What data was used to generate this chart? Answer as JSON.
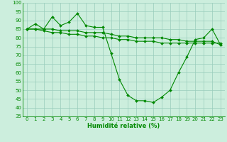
{
  "xlabel": "Humidité relative (%)",
  "background_color": "#cceedd",
  "grid_color": "#99ccbb",
  "line_color": "#008800",
  "xlim": [
    -0.5,
    23.5
  ],
  "ylim": [
    35,
    100
  ],
  "yticks": [
    35,
    40,
    45,
    50,
    55,
    60,
    65,
    70,
    75,
    80,
    85,
    90,
    95,
    100
  ],
  "xticks": [
    0,
    1,
    2,
    3,
    4,
    5,
    6,
    7,
    8,
    9,
    10,
    11,
    12,
    13,
    14,
    15,
    16,
    17,
    18,
    19,
    20,
    21,
    22,
    23
  ],
  "series": [
    [
      85,
      88,
      85,
      92,
      87,
      89,
      94,
      87,
      86,
      86,
      71,
      56,
      47,
      44,
      44,
      43,
      46,
      50,
      60,
      69,
      79,
      80,
      85,
      76
    ],
    [
      85,
      85,
      85,
      85,
      84,
      84,
      84,
      83,
      83,
      83,
      82,
      81,
      81,
      80,
      80,
      80,
      80,
      79,
      79,
      78,
      78,
      78,
      78,
      76
    ],
    [
      85,
      85,
      84,
      83,
      83,
      82,
      82,
      81,
      81,
      80,
      80,
      79,
      79,
      78,
      78,
      78,
      77,
      77,
      77,
      77,
      77,
      77,
      77,
      77
    ]
  ],
  "tick_fontsize": 5.0,
  "xlabel_fontsize": 6.0,
  "marker_size": 2.0,
  "line_width": 0.8
}
